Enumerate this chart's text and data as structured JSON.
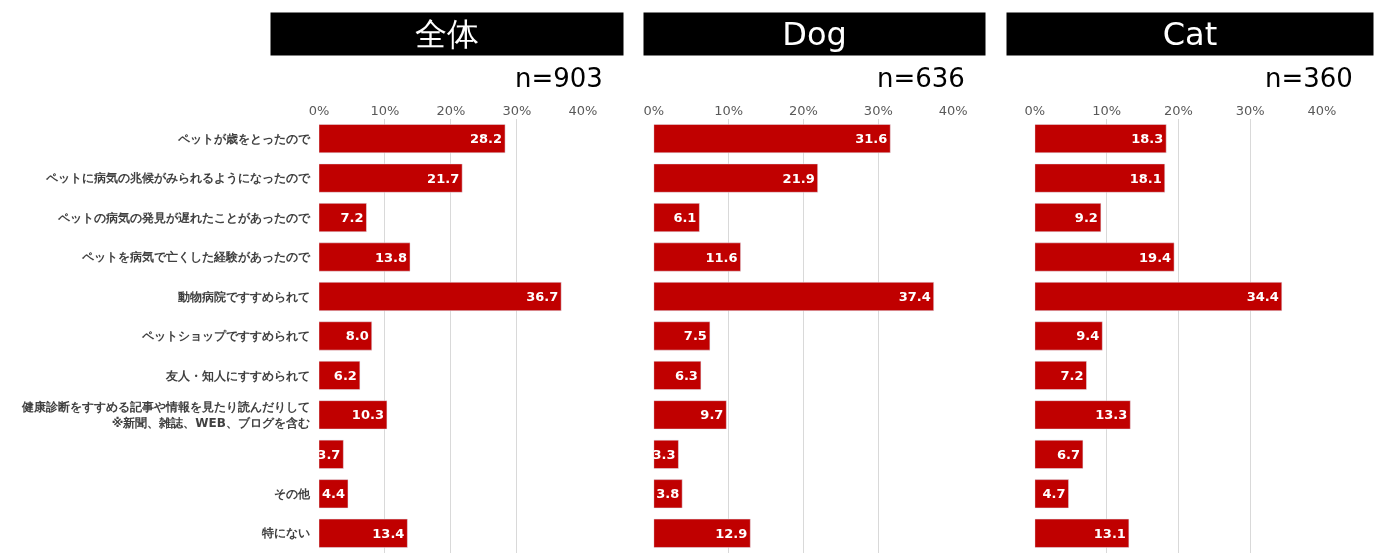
{
  "chart_data": [
    {
      "type": "bar",
      "orientation": "horizontal",
      "title": "全体",
      "subtitle": "n=903",
      "categories": [
        "ペットが歳をとったので",
        "ペットに病気の兆候がみられるようになったので",
        "ペットの病気の発見が遅れたことがあったので",
        "ペットを病気で亡くした経験があったので",
        "動物病院ですすめられて",
        "ペットショップですすめられて",
        "友人・知人にすすめられて",
        "健康診断をすすめる記事や情報を見たり読んだりして\n※新聞、雑誌、WEB、ブログを含む",
        null,
        "その他",
        "特にない"
      ],
      "values": [
        28.2,
        21.7,
        7.2,
        13.8,
        36.7,
        8.0,
        6.2,
        10.3,
        3.7,
        4.4,
        13.4
      ],
      "value_labels": [
        "28.2",
        "21.7",
        "7.2",
        "13.8",
        "36.7",
        "8.0",
        "6.2",
        "10.3",
        "3.7",
        "4.4",
        "13.4"
      ],
      "color": "#c00000",
      "xlim": [
        0,
        40
      ],
      "xticks": [
        {
          "value": 0,
          "label": "0%"
        },
        {
          "value": 10,
          "label": "10%"
        },
        {
          "value": 20,
          "label": "20%"
        },
        {
          "value": 30,
          "label": "30%"
        },
        {
          "value": 40,
          "label": "40%"
        }
      ],
      "grid": "x"
    },
    {
      "type": "bar",
      "orientation": "horizontal",
      "title": "Dog",
      "subtitle": "n=636",
      "categories": [
        "ペットが歳をとったので",
        "ペットに病気の兆候がみられるようになったので",
        "ペットの病気の発見が遅れたことがあったので",
        "ペットを病気で亡くした経験があったので",
        "動物病院ですすめられて",
        "ペットショップですすめられて",
        "友人・知人にすすめられて",
        "健康診断をすすめる記事や情報を見たり読んだりして\n※新聞、雑誌、WEB、ブログを含む",
        null,
        "その他",
        "特にない"
      ],
      "values": [
        31.6,
        21.9,
        6.1,
        11.6,
        37.4,
        7.5,
        6.3,
        9.7,
        3.3,
        3.8,
        12.9
      ],
      "value_labels": [
        "31.6",
        "21.9",
        "6.1",
        "11.6",
        "37.4",
        "7.5",
        "6.3",
        "9.7",
        "3.3",
        "3.8",
        "12.9"
      ],
      "color": "#c00000",
      "xlim": [
        0,
        40
      ],
      "xticks": [
        {
          "value": 0,
          "label": "0%"
        },
        {
          "value": 10,
          "label": "10%"
        },
        {
          "value": 20,
          "label": "20%"
        },
        {
          "value": 30,
          "label": "30%"
        },
        {
          "value": 40,
          "label": "40%"
        }
      ],
      "grid": "x",
      "tick_labels": "x"
    },
    {
      "type": "bar",
      "orientation": "horizontal",
      "title": "Cat",
      "subtitle": "n=360",
      "categories": [
        "ペットが歳をとったので",
        "ペットに病気の兆候がみられるようになったので",
        "ペットの病気の発見が遅れたことがあったので",
        "ペットを病気で亡くした経験があったので",
        "動物病院ですすめられて",
        "ペットショップですすめられて",
        "友人・知人にすすめられて",
        "健康診断をすすめる記事や情報を見たり読んだりして\n※新聞、雑誌、WEB、ブログを含む",
        null,
        "その他",
        "特にない"
      ],
      "values": [
        18.3,
        18.1,
        9.2,
        19.4,
        34.4,
        9.4,
        7.2,
        13.3,
        6.7,
        4.7,
        13.1
      ],
      "value_labels": [
        "18.3",
        "18.1",
        "9.2",
        "19.4",
        "34.4",
        "9.4",
        "7.2",
        "13.3",
        "6.7",
        "4.7",
        "13.1"
      ],
      "color": "#c00000",
      "xlim": [
        0,
        40
      ],
      "xticks": [
        {
          "value": 0,
          "label": "0%"
        },
        {
          "value": 10,
          "label": "10%"
        },
        {
          "value": 20,
          "label": "20%"
        },
        {
          "value": 30,
          "label": "30%"
        },
        {
          "value": 40,
          "label": "40%"
        }
      ],
      "grid": "x",
      "tick_labels": "x"
    }
  ]
}
